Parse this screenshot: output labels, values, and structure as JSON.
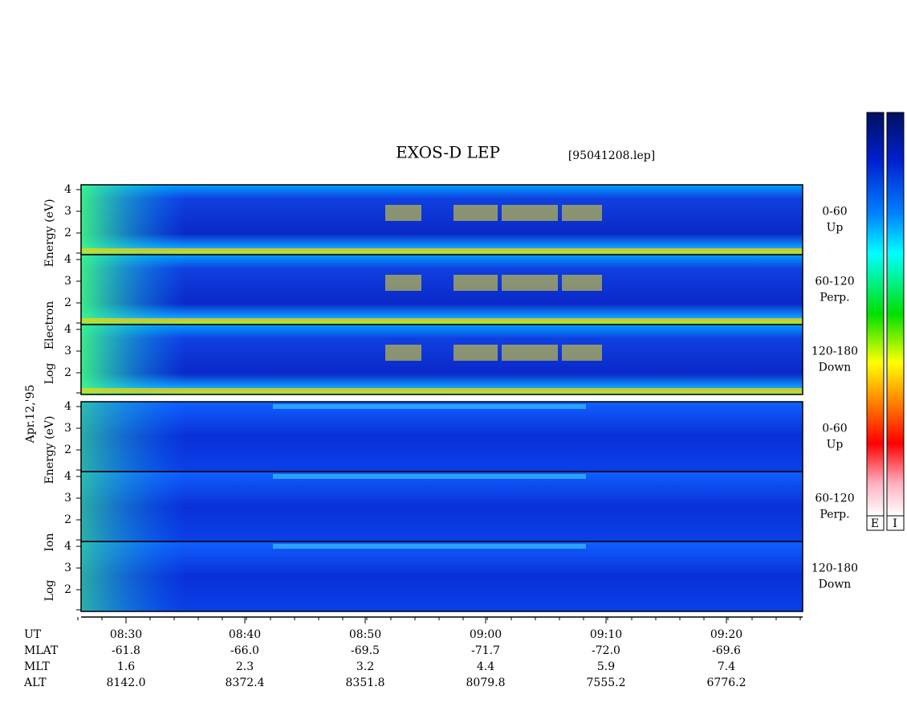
{
  "header": {
    "title": "EXOS-D LEP",
    "file": "[95041208.lep]"
  },
  "date": "Apr.12,'95",
  "groups": [
    {
      "axis_label": [
        "Log",
        "Electron",
        "Energy (eV)"
      ],
      "panels": [
        {
          "ticks": [
            "4",
            "3",
            "2"
          ],
          "angle": "0-60",
          "direction": "Up"
        },
        {
          "ticks": [
            "4",
            "3",
            "2"
          ],
          "angle": "60-120",
          "direction": "Perp."
        },
        {
          "ticks": [
            "4",
            "3",
            "2"
          ],
          "angle": "120-180",
          "direction": "Down"
        }
      ]
    },
    {
      "axis_label": [
        "Log",
        "Ion",
        "Energy (eV)"
      ],
      "panels": [
        {
          "ticks": [
            "4",
            "3",
            "2"
          ],
          "angle": "0-60",
          "direction": "Up"
        },
        {
          "ticks": [
            "4",
            "3",
            "2"
          ],
          "angle": "60-120",
          "direction": "Perp."
        },
        {
          "ticks": [
            "4",
            "3",
            "2"
          ],
          "angle": "120-180",
          "direction": "Down"
        }
      ]
    }
  ],
  "colorbar_labels": [
    "E",
    "I"
  ],
  "time_axis": {
    "rows": [
      {
        "label": "UT",
        "values": [
          "08:30",
          "08:40",
          "08:50",
          "09:00",
          "09:10",
          "09:20"
        ]
      },
      {
        "label": "MLAT",
        "values": [
          "-61.8",
          "-66.0",
          "-69.5",
          "-71.7",
          "-72.0",
          "-69.6"
        ]
      },
      {
        "label": "MLT",
        "values": [
          "1.6",
          "2.3",
          "3.2",
          "4.4",
          "5.9",
          "7.4"
        ]
      },
      {
        "label": "ALT",
        "values": [
          "8142.0",
          "8372.4",
          "8351.8",
          "8079.8",
          "7555.2",
          "6776.2"
        ]
      }
    ]
  }
}
